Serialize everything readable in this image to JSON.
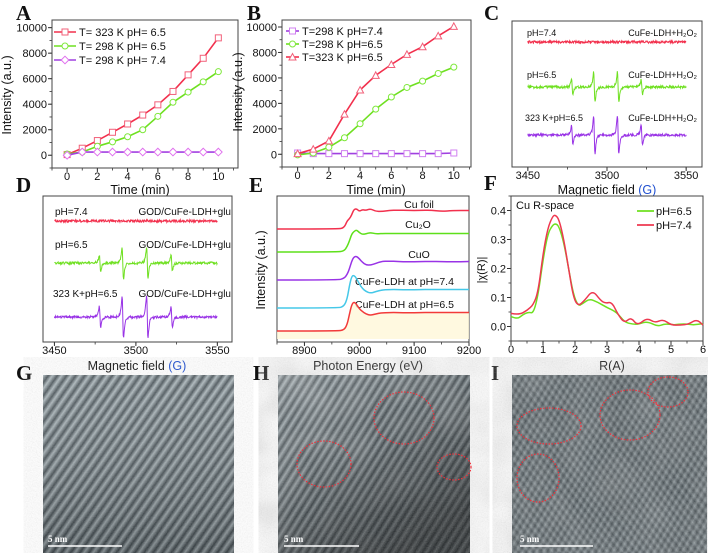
{
  "chart_data": [
    {
      "panel": "A",
      "type": "line",
      "xlabel": "Time (min)",
      "ylabel": "Intensity (a.u.)",
      "xlim": [
        -1,
        11.3
      ],
      "ylim": [
        -1000,
        10600
      ],
      "x_ticks": [
        "0",
        "2",
        "4",
        "6",
        "8",
        "10"
      ],
      "y_ticks": [
        "0",
        "2000",
        "4000",
        "6000",
        "8000",
        "10000"
      ],
      "legend_position": "top-left",
      "x": [
        0,
        1,
        2,
        3,
        4,
        5,
        6,
        7,
        8,
        9,
        10
      ],
      "series": [
        {
          "name": "T= 323 K pH= 6.5",
          "color": "#f2304d",
          "marker_color": "#f2607a",
          "marker": "square",
          "values": [
            50,
            550,
            1150,
            1800,
            2450,
            3150,
            3950,
            5000,
            6300,
            7600,
            9200
          ]
        },
        {
          "name": "T= 298 K pH= 6.5",
          "color": "#6fe021",
          "marker_color": "#7ee83a",
          "marker": "circle",
          "values": [
            100,
            250,
            700,
            1050,
            1450,
            2000,
            3050,
            4150,
            4950,
            5750,
            6550
          ]
        },
        {
          "name": "T= 298 K pH= 7.4",
          "color": "#a040e0",
          "marker_color": "#e070ee",
          "marker": "diamond",
          "values": [
            0,
            250,
            250,
            250,
            250,
            250,
            250,
            250,
            250,
            250,
            250
          ]
        }
      ]
    },
    {
      "panel": "B",
      "type": "line",
      "xlabel": "Time (min)",
      "ylabel": "Intensity (a.u.)",
      "xlim": [
        -1,
        11.1
      ],
      "ylim": [
        -1000,
        10550
      ],
      "x_ticks": [
        "0",
        "2",
        "4",
        "6",
        "8",
        "10"
      ],
      "y_ticks": [
        "0",
        "2000",
        "4000",
        "6000",
        "8000",
        "10000"
      ],
      "legend_position": "top-left",
      "x": [
        0,
        1,
        2,
        3,
        4,
        5,
        6,
        7,
        8,
        9,
        10
      ],
      "series": [
        {
          "name": "T=298 K pH=7.4",
          "color": "#a040e0",
          "marker_color": "#d080f0",
          "marker": "square",
          "values": [
            100,
            50,
            50,
            50,
            50,
            50,
            50,
            50,
            50,
            50,
            100
          ]
        },
        {
          "name": "T=298 K pH=6.5",
          "color": "#6fe021",
          "marker_color": "#7ee83a",
          "marker": "circle",
          "values": [
            -50,
            100,
            550,
            1300,
            2400,
            3550,
            4500,
            5250,
            5750,
            6350,
            6850
          ]
        },
        {
          "name": "T=323 K pH=6.5",
          "color": "#f2304d",
          "marker_color": "#f2607a",
          "marker": "triangle",
          "values": [
            50,
            400,
            1050,
            3150,
            5050,
            6200,
            7050,
            7850,
            8450,
            9300,
            10050
          ]
        }
      ]
    },
    {
      "panel": "C",
      "type": "line",
      "xlabel": "Magnetic field",
      "xlabel_unit": "(G)",
      "xlim": [
        3440,
        3560
      ],
      "x_ticks": [
        "3450",
        "3500",
        "3550"
      ],
      "peak_positions_G": [
        3478,
        3492,
        3507,
        3522
      ],
      "peak_ratio": [
        1,
        2,
        2,
        1
      ],
      "traces": [
        {
          "left_label": "pH=7.4",
          "right_label": "CuFe-LDH+H₂O₂",
          "color": "#f2304d",
          "relative_intensity": 0
        },
        {
          "left_label": "pH=6.5",
          "right_label": "CuFe-LDH+H₂O₂",
          "color": "#6fe021",
          "relative_intensity": 0.8
        },
        {
          "left_label": "323 K+pH=6.5",
          "right_label": "CuFe-LDH+H₂O₂",
          "color": "#9933e6",
          "relative_intensity": 1
        }
      ]
    },
    {
      "panel": "D",
      "type": "line",
      "xlabel": "Magnetic field",
      "xlabel_unit": "(G)",
      "xlim": [
        3443,
        3559
      ],
      "x_ticks": [
        "3450",
        "3500",
        "3550"
      ],
      "peak_positions_G": [
        3478,
        3492,
        3507,
        3522
      ],
      "peak_ratio": [
        1,
        2,
        2,
        1
      ],
      "traces": [
        {
          "left_label": "pH=7.4",
          "right_label": "GOD/CuFe-LDH+glu",
          "color": "#f2304d",
          "relative_intensity": 0
        },
        {
          "left_label": "pH=6.5",
          "right_label": "GOD/CuFe-LDH+glu",
          "color": "#6fe021",
          "relative_intensity": 0.75
        },
        {
          "left_label": "323 K+pH=6.5",
          "right_label": "GOD/CuFe-LDH+glu",
          "color": "#9933e6",
          "relative_intensity": 1
        }
      ]
    },
    {
      "panel": "E",
      "type": "line",
      "xlabel": "Photon Energy (eV)",
      "ylabel": "Intensity (a.u.)",
      "xlim": [
        8850,
        9200
      ],
      "x_ticks": [
        "8900",
        "9000",
        "9100",
        "9200"
      ],
      "x": [
        8850,
        8960,
        8972,
        8978,
        8982,
        8986,
        8990,
        8995,
        9000,
        9006,
        9012,
        9020,
        9030,
        9040,
        9055,
        9070,
        9090,
        9110,
        9130,
        9150,
        9170,
        9200
      ],
      "series": [
        {
          "name": "Cu foil",
          "color": "#f2304d",
          "values": [
            0,
            0,
            0.05,
            0.45,
            0.55,
            0.75,
            1.05,
            1.1,
            0.95,
            1.05,
            1.0,
            1.1,
            0.95,
            0.95,
            1.0,
            1.02,
            1.0,
            1.0,
            1.02,
            0.95,
            1.0,
            1.0
          ]
        },
        {
          "name": "Cu₂O",
          "color": "#5ee01a",
          "values": [
            0,
            0,
            0.05,
            0.3,
            0.6,
            0.95,
            1.1,
            1.2,
            1.05,
            0.95,
            0.98,
            1.05,
            0.98,
            1,
            1,
            1,
            1,
            1,
            1,
            1,
            1,
            1
          ]
        },
        {
          "name": "CuO",
          "color": "#9933e6",
          "values": [
            0,
            0,
            0.08,
            0.3,
            0.6,
            1.0,
            1.25,
            1.28,
            1.15,
            0.95,
            0.82,
            0.8,
            0.9,
            1.0,
            1.02,
            1.0,
            0.98,
            1.0,
            1.0,
            1.0,
            0.98,
            1.0
          ]
        },
        {
          "name": "CuFe-LDH at pH=7.4",
          "color": "#45c8e8",
          "values": [
            0,
            0,
            0.08,
            0.5,
            1.2,
            1.7,
            1.78,
            1.6,
            1.3,
            1.05,
            0.9,
            0.8,
            0.88,
            0.97,
            1.0,
            1.0,
            0.98,
            1.0,
            1.0,
            1.0,
            1.0,
            1.0
          ]
        },
        {
          "name": "CuFe-LDH at pH=6.5",
          "color": "#f23a3a",
          "values": [
            0,
            0,
            0.05,
            0.35,
            0.9,
            1.4,
            1.58,
            1.45,
            1.2,
            1.05,
            0.92,
            0.85,
            0.92,
            0.98,
            1.0,
            1.0,
            0.98,
            1.0,
            1.0,
            1.0,
            1.0,
            1.0
          ]
        }
      ]
    },
    {
      "panel": "F",
      "type": "line",
      "xlabel": "R(A)",
      "ylabel": "|χ(R)|",
      "annotation": "Cu R-space",
      "xlim": [
        0,
        6
      ],
      "ylim": [
        -0.05,
        0.45
      ],
      "x_ticks": [
        "0",
        "1",
        "2",
        "3",
        "4",
        "5",
        "6"
      ],
      "y_ticks": [
        "0.0",
        "0.1",
        "0.2",
        "0.3",
        "0.4"
      ],
      "legend_position": "top-right",
      "series": [
        {
          "name": "pH=6.5",
          "color": "#6fe021",
          "x": [
            0,
            0.2,
            0.35,
            0.55,
            0.7,
            0.85,
            1.0,
            1.15,
            1.3,
            1.4,
            1.5,
            1.65,
            1.8,
            1.95,
            2.1,
            2.25,
            2.45,
            2.7,
            3.0,
            3.3,
            3.55,
            3.8,
            4.0,
            4.25,
            4.6,
            4.8,
            5.1,
            5.4,
            5.7,
            6.0
          ],
          "y": [
            0.035,
            0.025,
            0.04,
            0.05,
            0.045,
            0.11,
            0.23,
            0.32,
            0.35,
            0.355,
            0.345,
            0.29,
            0.2,
            0.11,
            0.07,
            0.08,
            0.095,
            0.085,
            0.065,
            0.05,
            0.015,
            0.008,
            0.008,
            0.018,
            0.0,
            0.01,
            0.005,
            0.01,
            0.005,
            0.01
          ]
        },
        {
          "name": "pH=7.4",
          "color": "#ee3850",
          "x": [
            0,
            0.25,
            0.5,
            0.7,
            0.85,
            1.0,
            1.15,
            1.3,
            1.38,
            1.5,
            1.65,
            1.8,
            1.95,
            2.1,
            2.3,
            2.55,
            2.8,
            2.95,
            3.15,
            3.35,
            3.55,
            3.75,
            3.95,
            4.25,
            4.5,
            4.75,
            5.0,
            5.3,
            5.55,
            5.8,
            6.0
          ],
          "y": [
            0.045,
            0.04,
            0.055,
            0.075,
            0.12,
            0.25,
            0.34,
            0.38,
            0.385,
            0.37,
            0.3,
            0.2,
            0.1,
            0.07,
            0.09,
            0.125,
            0.09,
            0.08,
            0.085,
            0.04,
            0.012,
            0.032,
            0.003,
            0.03,
            0.012,
            0.025,
            0.005,
            0.005,
            0.008,
            0.025,
            0.005
          ]
        }
      ]
    }
  ],
  "images": [
    {
      "panel": "G",
      "scale_bar": "5 nm"
    },
    {
      "panel": "H",
      "scale_bar": "5 nm"
    },
    {
      "panel": "I",
      "scale_bar": "5 nm"
    }
  ]
}
